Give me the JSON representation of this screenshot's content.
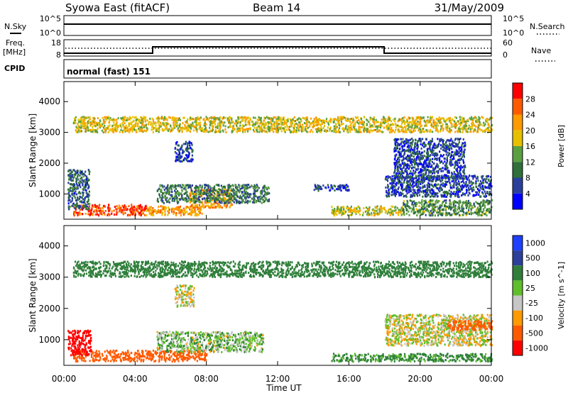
{
  "header": {
    "station": "Syowa East (fitACF)",
    "beam": "Beam 14",
    "date": "31/May/2009"
  },
  "strips": {
    "nsky": {
      "label": "N.Sky",
      "ticks": [
        "10^5",
        "10^0"
      ]
    },
    "nsearch": {
      "label": "N.Search",
      "ticks": [
        "10^5",
        "10^0"
      ]
    },
    "freq": {
      "label_line1": "Freq.",
      "label_line2": "[MHz]",
      "ticks": [
        "18",
        "8"
      ]
    },
    "nave": {
      "label": "Nave",
      "ticks": [
        "60",
        "0"
      ]
    },
    "cpid": {
      "label": "CPID",
      "value": "normal (fast) 151"
    }
  },
  "colors": {
    "power": [
      "#0000ff",
      "#2a3f9a",
      "#2f6f3a",
      "#5aa040",
      "#e6c000",
      "#ff9a00",
      "#ff5a00",
      "#ff0000"
    ],
    "velocity": [
      "#ff0000",
      "#ff5a00",
      "#ff9a00",
      "#c6c6c6",
      "#5fbf2a",
      "#2f7f3a",
      "#2c3f9a",
      "#1f3fff"
    ]
  },
  "chart_data": [
    {
      "type": "heatmap",
      "title": "Power",
      "xlabel": "Time UT",
      "ylabel": "Slant Range [km]",
      "x_ticks": [
        "00:00",
        "04:00",
        "08:00",
        "12:00",
        "16:00",
        "20:00",
        "00:00"
      ],
      "y_ticks": [
        "1000",
        "2000",
        "3000",
        "4000"
      ],
      "ylim": [
        180,
        4650
      ],
      "xlim_hours": [
        0,
        24
      ],
      "colorbar": {
        "label": "Power [dB]",
        "ticks": [
          "4",
          "8",
          "12",
          "16",
          "20",
          "24",
          "28"
        ],
        "range": [
          0,
          32
        ]
      },
      "echo_regions": [
        {
          "t0": 0.5,
          "t1": 4.6,
          "r0": 300,
          "r1": 650,
          "value": 27
        },
        {
          "t0": 4.6,
          "t1": 7.8,
          "r0": 300,
          "r1": 600,
          "value": 22
        },
        {
          "t0": 7.0,
          "t1": 9.4,
          "r0": 550,
          "r1": 1150,
          "value": 22
        },
        {
          "t0": 5.2,
          "t1": 11.5,
          "r0": 700,
          "r1": 1300,
          "value": 10
        },
        {
          "t0": 6.2,
          "t1": 7.2,
          "r0": 2050,
          "r1": 2700,
          "value": 6
        },
        {
          "t0": 0.2,
          "t1": 1.4,
          "r0": 500,
          "r1": 1800,
          "value": 8
        },
        {
          "t0": 15.0,
          "t1": 19.0,
          "r0": 300,
          "r1": 600,
          "value": 17
        },
        {
          "t0": 18.0,
          "t1": 24.0,
          "r0": 900,
          "r1": 1600,
          "value": 6
        },
        {
          "t0": 18.5,
          "t1": 22.5,
          "r0": 1500,
          "r1": 2800,
          "value": 6
        },
        {
          "t0": 19.0,
          "t1": 24.0,
          "r0": 300,
          "r1": 800,
          "value": 12
        },
        {
          "t0": 14.0,
          "t1": 16.0,
          "r0": 1100,
          "r1": 1300,
          "value": 6
        },
        {
          "t0": 0.5,
          "t1": 24.0,
          "r0": 3000,
          "r1": 3500,
          "value": 18
        }
      ]
    },
    {
      "type": "heatmap",
      "title": "Velocity",
      "xlabel": "Time UT",
      "ylabel": "Slant Range [km]",
      "x_ticks": [
        "00:00",
        "04:00",
        "08:00",
        "12:00",
        "16:00",
        "20:00",
        "00:00"
      ],
      "y_ticks": [
        "1000",
        "2000",
        "3000",
        "4000"
      ],
      "ylim": [
        180,
        4650
      ],
      "xlim_hours": [
        0,
        24
      ],
      "colorbar": {
        "label": "Velocity [m s^-1]",
        "ticks": [
          "1000",
          "500",
          "100",
          "25",
          "-25",
          "-100",
          "-500",
          "-1000"
        ]
      },
      "echo_regions": [
        {
          "t0": 0.5,
          "t1": 8.0,
          "r0": 300,
          "r1": 650,
          "value": -300
        },
        {
          "t0": 0.2,
          "t1": 1.5,
          "r0": 500,
          "r1": 1300,
          "value": -600
        },
        {
          "t0": 5.2,
          "t1": 11.2,
          "r0": 600,
          "r1": 1250,
          "value": 60
        },
        {
          "t0": 6.2,
          "t1": 7.3,
          "r0": 2050,
          "r1": 2750,
          "value": 0
        },
        {
          "t0": 15.0,
          "t1": 24.0,
          "r0": 300,
          "r1": 550,
          "value": 150
        },
        {
          "t0": 18.0,
          "t1": 24.0,
          "r0": 800,
          "r1": 1800,
          "value": 0
        },
        {
          "t0": 21.5,
          "t1": 24.0,
          "r0": 1300,
          "r1": 1600,
          "value": -300
        },
        {
          "t0": 0.5,
          "t1": 24.0,
          "r0": 3000,
          "r1": 3500,
          "value": 200
        }
      ]
    }
  ]
}
